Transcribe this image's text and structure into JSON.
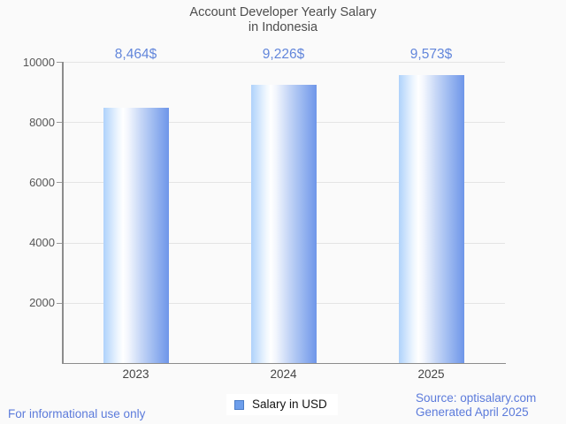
{
  "title": {
    "line1": "Account Developer Yearly Salary",
    "line2": "in Indonesia"
  },
  "chart_data": {
    "type": "bar",
    "title": "Account Developer Yearly Salary in Indonesia",
    "categories": [
      "2023",
      "2024",
      "2025"
    ],
    "values": [
      8464,
      9226,
      9573
    ],
    "value_labels": [
      "8,464$",
      "9,226$",
      "9,573$"
    ],
    "series_name": "Salary in USD",
    "xlabel": "",
    "ylabel": "",
    "ylim": [
      0,
      10000
    ],
    "yticks": [
      2000,
      4000,
      6000,
      8000,
      10000
    ],
    "grid": true,
    "legend_position": "bottom-center"
  },
  "legend": {
    "label": "Salary in USD",
    "swatch_color": "#6d9eeb",
    "swatch_border": "#4a7cc7"
  },
  "footer": {
    "left": "For informational use only",
    "source": "Source: optisalary.com",
    "generated": "Generated April 2025"
  },
  "colors": {
    "background": "#fafafa",
    "title_text": "#4d4d4d",
    "axis": "#8c8c8c",
    "grid": "#e4e4e4",
    "tick_text": "#575757",
    "value_label_text": "#6286db",
    "footer_text": "#5c7bdb",
    "bar_gradient": [
      "#afd2fb",
      "#eef6fe",
      "#ffffff",
      "#f2f6fd",
      "#c4d5f6",
      "#9ab7f0",
      "#6e96e9"
    ]
  }
}
